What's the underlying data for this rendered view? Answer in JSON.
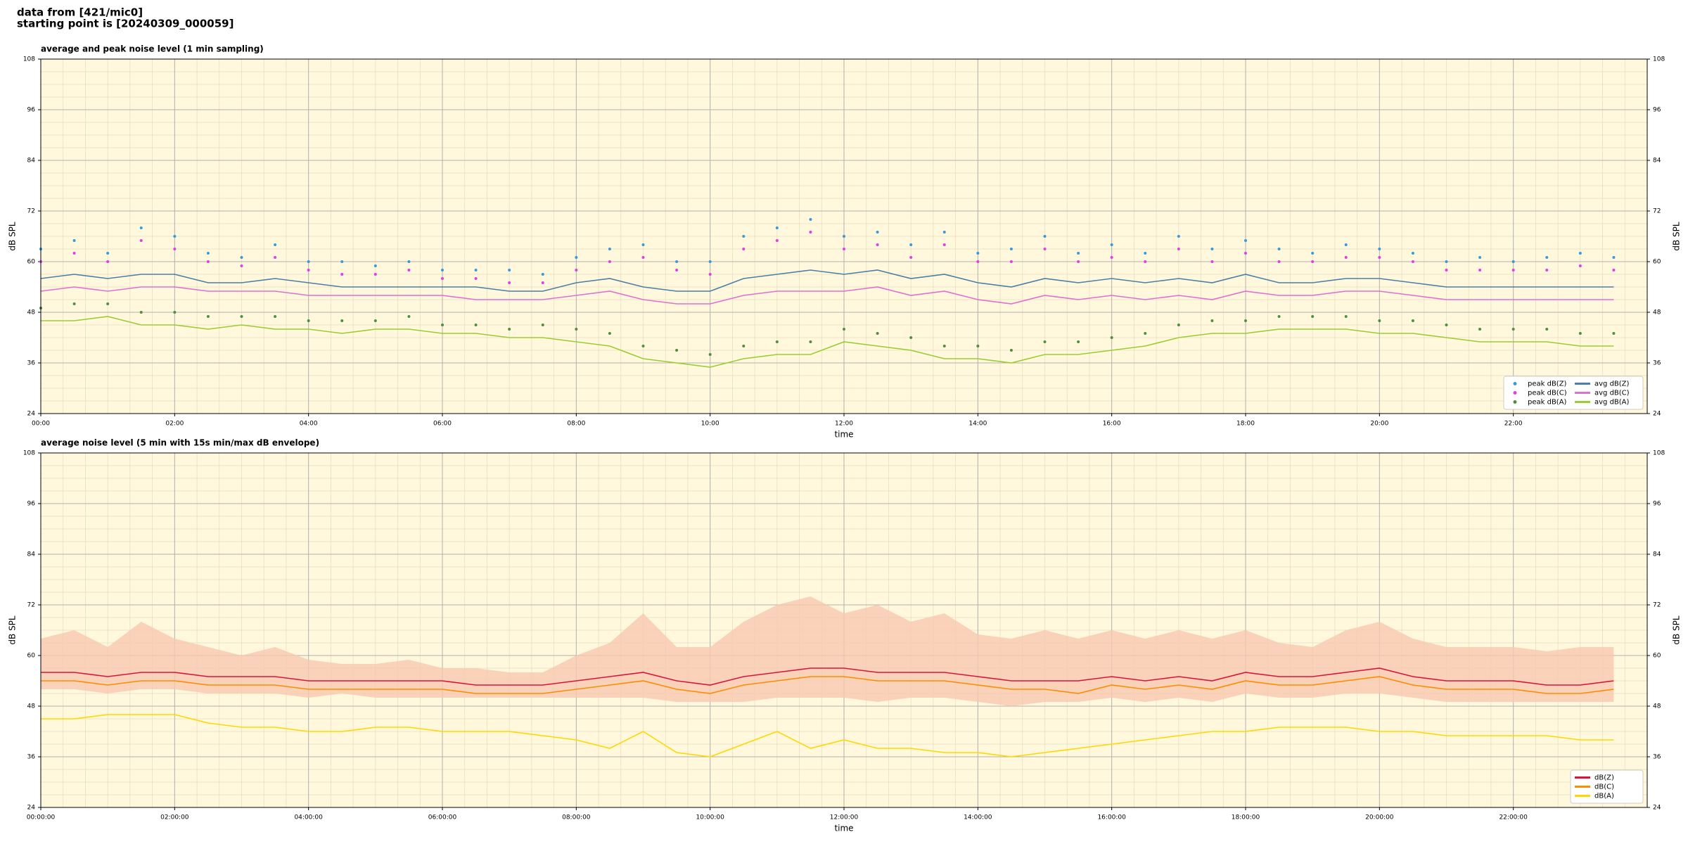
{
  "header": {
    "source": "data from [421/mic0]",
    "start": "starting point is [20240309_000059]"
  },
  "chart_data": [
    {
      "type": "line",
      "title": "average and peak noise level (1 min sampling)",
      "x_label": "time",
      "y_label": "dB SPL",
      "xlim": [
        0,
        24
      ],
      "ylim": [
        24,
        108
      ],
      "yticks": [
        24,
        36,
        48,
        60,
        72,
        84,
        96,
        108
      ],
      "xticks": [
        {
          "value": 0,
          "label": "00:00"
        },
        {
          "value": 2,
          "label": "02:00"
        },
        {
          "value": 4,
          "label": "04:00"
        },
        {
          "value": 6,
          "label": "06:00"
        },
        {
          "value": 8,
          "label": "08:00"
        },
        {
          "value": 10,
          "label": "10:00"
        },
        {
          "value": 12,
          "label": "12:00"
        },
        {
          "value": 14,
          "label": "14:00"
        },
        {
          "value": 16,
          "label": "16:00"
        },
        {
          "value": 18,
          "label": "18:00"
        },
        {
          "value": 20,
          "label": "20:00"
        },
        {
          "value": 22,
          "label": "22:00"
        }
      ],
      "grid": true,
      "minor_grid": true,
      "legend": "lower right",
      "background": "#fff8dc",
      "x": [
        0,
        0.5,
        1,
        1.5,
        2,
        2.5,
        3,
        3.5,
        4,
        4.5,
        5,
        5.5,
        6,
        6.5,
        7,
        7.5,
        8,
        8.5,
        9,
        9.5,
        10,
        10.5,
        11,
        11.5,
        12,
        12.5,
        13,
        13.5,
        14,
        14.5,
        15,
        15.5,
        16,
        16.5,
        17,
        17.5,
        18,
        18.5,
        19,
        19.5,
        20,
        20.5,
        21,
        21.5,
        22,
        22.5,
        23,
        23.5
      ],
      "series": [
        {
          "name": "peak dB(Z)",
          "mode": "markers",
          "color": "#3a9ad9",
          "values": [
            63,
            65,
            62,
            68,
            66,
            62,
            61,
            64,
            60,
            60,
            59,
            60,
            58,
            58,
            58,
            57,
            61,
            63,
            64,
            60,
            60,
            66,
            68,
            70,
            66,
            67,
            64,
            67,
            62,
            63,
            66,
            62,
            64,
            62,
            66,
            63,
            65,
            63,
            62,
            64,
            63,
            62,
            60,
            61,
            60,
            61,
            62,
            61
          ]
        },
        {
          "name": "peak dB(C)",
          "mode": "markers",
          "color": "#e040e0",
          "values": [
            60,
            62,
            60,
            65,
            63,
            60,
            59,
            61,
            58,
            57,
            57,
            58,
            56,
            56,
            55,
            55,
            58,
            60,
            61,
            58,
            57,
            63,
            65,
            67,
            63,
            64,
            61,
            64,
            60,
            60,
            63,
            60,
            61,
            60,
            63,
            60,
            62,
            60,
            60,
            61,
            61,
            60,
            58,
            58,
            58,
            58,
            59,
            58
          ]
        },
        {
          "name": "peak dB(A)",
          "mode": "markers",
          "color": "#4f8f3f",
          "values": [
            49,
            50,
            50,
            48,
            48,
            47,
            47,
            47,
            46,
            46,
            46,
            47,
            45,
            45,
            44,
            45,
            44,
            43,
            40,
            39,
            38,
            40,
            41,
            41,
            44,
            43,
            42,
            40,
            40,
            39,
            41,
            41,
            42,
            43,
            45,
            46,
            46,
            47,
            47,
            47,
            46,
            46,
            45,
            44,
            44,
            44,
            43,
            43
          ]
        },
        {
          "name": "avg dB(Z)",
          "mode": "lines",
          "color": "#4a7fa8",
          "values": [
            56,
            57,
            56,
            57,
            57,
            55,
            55,
            56,
            55,
            54,
            54,
            54,
            54,
            54,
            53,
            53,
            55,
            56,
            54,
            53,
            53,
            56,
            57,
            58,
            57,
            58,
            56,
            57,
            55,
            54,
            56,
            55,
            56,
            55,
            56,
            55,
            57,
            55,
            55,
            56,
            56,
            55,
            54,
            54,
            54,
            54,
            54,
            54
          ]
        },
        {
          "name": "avg dB(C)",
          "mode": "lines",
          "color": "#e070d0",
          "values": [
            53,
            54,
            53,
            54,
            54,
            53,
            53,
            53,
            52,
            52,
            52,
            52,
            52,
            51,
            51,
            51,
            52,
            53,
            51,
            50,
            50,
            52,
            53,
            53,
            53,
            54,
            52,
            53,
            51,
            50,
            52,
            51,
            52,
            51,
            52,
            51,
            53,
            52,
            52,
            53,
            53,
            52,
            51,
            51,
            51,
            51,
            51,
            51
          ]
        },
        {
          "name": "avg dB(A)",
          "mode": "lines",
          "color": "#9acd32",
          "values": [
            46,
            46,
            47,
            45,
            45,
            44,
            45,
            44,
            44,
            43,
            44,
            44,
            43,
            43,
            42,
            42,
            41,
            40,
            37,
            36,
            35,
            37,
            38,
            38,
            41,
            40,
            39,
            37,
            37,
            36,
            38,
            38,
            39,
            40,
            42,
            43,
            43,
            44,
            44,
            44,
            43,
            43,
            42,
            41,
            41,
            41,
            40,
            40
          ]
        }
      ]
    },
    {
      "type": "line",
      "title": "average noise level (5 min with 15s min/max dB envelope)",
      "x_label": "time",
      "y_label": "dB SPL",
      "xlim": [
        0,
        24
      ],
      "ylim": [
        24,
        108
      ],
      "yticks": [
        24,
        36,
        48,
        60,
        72,
        84,
        96,
        108
      ],
      "xticks": [
        {
          "value": 0,
          "label": "00:00:00"
        },
        {
          "value": 2,
          "label": "02:00:00"
        },
        {
          "value": 4,
          "label": "04:00:00"
        },
        {
          "value": 6,
          "label": "06:00:00"
        },
        {
          "value": 8,
          "label": "08:00:00"
        },
        {
          "value": 10,
          "label": "10:00:00"
        },
        {
          "value": 12,
          "label": "12:00:00"
        },
        {
          "value": 14,
          "label": "14:00:00"
        },
        {
          "value": 16,
          "label": "16:00:00"
        },
        {
          "value": 18,
          "label": "18:00:00"
        },
        {
          "value": 20,
          "label": "20:00:00"
        },
        {
          "value": 22,
          "label": "22:00:00"
        }
      ],
      "grid": true,
      "minor_grid": true,
      "legend": "lower right",
      "background": "#fff8dc",
      "x": [
        0,
        0.5,
        1,
        1.5,
        2,
        2.5,
        3,
        3.5,
        4,
        4.5,
        5,
        5.5,
        6,
        6.5,
        7,
        7.5,
        8,
        8.5,
        9,
        9.5,
        10,
        10.5,
        11,
        11.5,
        12,
        12.5,
        13,
        13.5,
        14,
        14.5,
        15,
        15.5,
        16,
        16.5,
        17,
        17.5,
        18,
        18.5,
        19,
        19.5,
        20,
        20.5,
        21,
        21.5,
        22,
        22.5,
        23,
        23.5
      ],
      "envelope": {
        "color": "#f8c8b0",
        "upper": [
          64,
          66,
          62,
          68,
          64,
          62,
          60,
          62,
          59,
          58,
          58,
          59,
          57,
          57,
          56,
          56,
          60,
          63,
          70,
          62,
          62,
          68,
          72,
          74,
          70,
          72,
          68,
          70,
          65,
          64,
          66,
          64,
          66,
          64,
          66,
          64,
          66,
          63,
          62,
          66,
          68,
          64,
          62,
          62,
          62,
          61,
          62,
          62
        ],
        "lower": [
          52,
          52,
          51,
          52,
          52,
          51,
          51,
          51,
          50,
          51,
          50,
          50,
          50,
          50,
          50,
          50,
          50,
          50,
          50,
          49,
          49,
          49,
          50,
          50,
          50,
          49,
          50,
          50,
          49,
          48,
          49,
          49,
          50,
          49,
          50,
          49,
          51,
          50,
          50,
          51,
          51,
          50,
          49,
          49,
          49,
          49,
          49,
          49
        ]
      },
      "series": [
        {
          "name": "dB(Z)",
          "mode": "lines",
          "color": "#dc143c",
          "values": [
            56,
            56,
            55,
            56,
            56,
            55,
            55,
            55,
            54,
            54,
            54,
            54,
            54,
            53,
            53,
            53,
            54,
            55,
            56,
            54,
            53,
            55,
            56,
            57,
            57,
            56,
            56,
            56,
            55,
            54,
            54,
            54,
            55,
            54,
            55,
            54,
            56,
            55,
            55,
            56,
            57,
            55,
            54,
            54,
            54,
            53,
            53,
            54
          ]
        },
        {
          "name": "dB(C)",
          "mode": "lines",
          "color": "#ff8c00",
          "values": [
            54,
            54,
            53,
            54,
            54,
            53,
            53,
            53,
            52,
            52,
            52,
            52,
            52,
            51,
            51,
            51,
            52,
            53,
            54,
            52,
            51,
            53,
            54,
            55,
            55,
            54,
            54,
            54,
            53,
            52,
            52,
            51,
            53,
            52,
            53,
            52,
            54,
            53,
            53,
            54,
            55,
            53,
            52,
            52,
            52,
            51,
            51,
            52
          ]
        },
        {
          "name": "dB(A)",
          "mode": "lines",
          "color": "#ffd700",
          "values": [
            45,
            45,
            46,
            46,
            46,
            44,
            43,
            43,
            42,
            42,
            43,
            43,
            42,
            42,
            42,
            41,
            40,
            38,
            42,
            37,
            36,
            39,
            42,
            38,
            40,
            38,
            38,
            37,
            37,
            36,
            37,
            38,
            39,
            40,
            41,
            42,
            42,
            43,
            43,
            43,
            42,
            42,
            41,
            41,
            41,
            41,
            40,
            40
          ]
        }
      ]
    }
  ]
}
